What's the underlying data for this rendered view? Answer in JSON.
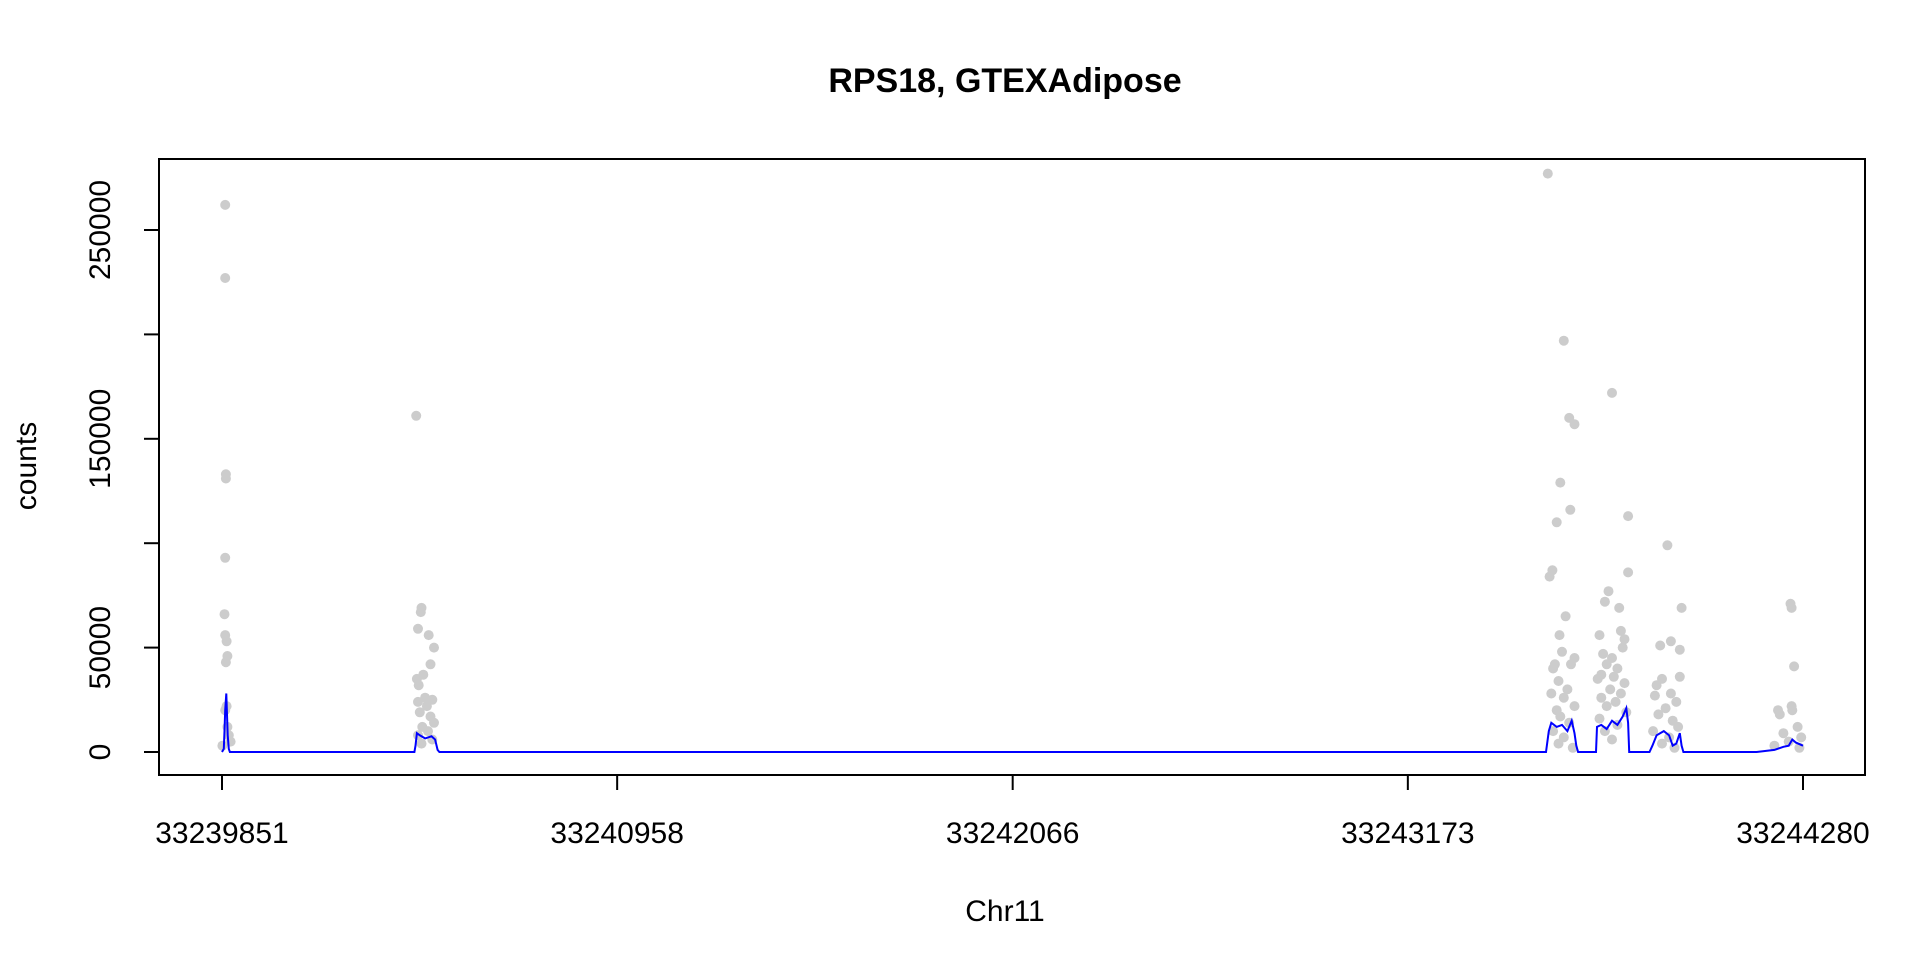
{
  "chart_data": {
    "type": "scatter",
    "title": "RPS18, GTEXAdipose",
    "xlabel": "Chr11",
    "ylabel": "counts",
    "xlim": [
      33239851,
      33244280
    ],
    "ylim": [
      0,
      275000
    ],
    "x_ticks": [
      33239851,
      33240958,
      33242066,
      33243173,
      33244280
    ],
    "y_ticks": [
      0,
      50000,
      100000,
      150000,
      200000,
      250000
    ],
    "y_tick_labels": [
      "0",
      "50000",
      "",
      "150000",
      "",
      "250000"
    ],
    "grid": false,
    "legend": "none",
    "colors": {
      "points": "#cccccc",
      "line": "#0000ff",
      "axis": "#000000"
    },
    "series": [
      {
        "kind": "points",
        "points": [
          [
            33239860,
            262000
          ],
          [
            33239860,
            227000
          ],
          [
            33239862,
            133000
          ],
          [
            33239862,
            131000
          ],
          [
            33239860,
            93000
          ],
          [
            33239858,
            66000
          ],
          [
            33239860,
            56000
          ],
          [
            33239864,
            53000
          ],
          [
            33239866,
            46000
          ],
          [
            33239862,
            43000
          ],
          [
            33239864,
            22000
          ],
          [
            33239860,
            20000
          ],
          [
            33239866,
            12000
          ],
          [
            33239870,
            8000
          ],
          [
            33239852,
            3000
          ],
          [
            33239875,
            5000
          ],
          [
            33240395,
            161000
          ],
          [
            33240410,
            69000
          ],
          [
            33240408,
            67000
          ],
          [
            33240400,
            59000
          ],
          [
            33240430,
            56000
          ],
          [
            33240445,
            50000
          ],
          [
            33240435,
            42000
          ],
          [
            33240415,
            37000
          ],
          [
            33240397,
            35000
          ],
          [
            33240402,
            32000
          ],
          [
            33240420,
            26000
          ],
          [
            33240440,
            25000
          ],
          [
            33240400,
            24000
          ],
          [
            33240425,
            22000
          ],
          [
            33240405,
            19000
          ],
          [
            33240435,
            17000
          ],
          [
            33240445,
            14000
          ],
          [
            33240412,
            12000
          ],
          [
            33240428,
            10000
          ],
          [
            33240400,
            8000
          ],
          [
            33240440,
            6000
          ],
          [
            33240410,
            4000
          ],
          [
            33243565,
            277000
          ],
          [
            33243610,
            197000
          ],
          [
            33243625,
            160000
          ],
          [
            33243640,
            157000
          ],
          [
            33243600,
            129000
          ],
          [
            33243628,
            116000
          ],
          [
            33243590,
            110000
          ],
          [
            33243578,
            87000
          ],
          [
            33243570,
            84000
          ],
          [
            33243615,
            65000
          ],
          [
            33243598,
            56000
          ],
          [
            33243640,
            45000
          ],
          [
            33243605,
            48000
          ],
          [
            33243585,
            42000
          ],
          [
            33243580,
            40000
          ],
          [
            33243630,
            42000
          ],
          [
            33243595,
            34000
          ],
          [
            33243620,
            30000
          ],
          [
            33243575,
            28000
          ],
          [
            33243610,
            26000
          ],
          [
            33243640,
            22000
          ],
          [
            33243590,
            20000
          ],
          [
            33243600,
            17000
          ],
          [
            33243625,
            14000
          ],
          [
            33243580,
            10000
          ],
          [
            33243610,
            7000
          ],
          [
            33243595,
            4000
          ],
          [
            33243635,
            2000
          ],
          [
            33243745,
            172000
          ],
          [
            33243790,
            113000
          ],
          [
            33243790,
            86000
          ],
          [
            33243735,
            77000
          ],
          [
            33243725,
            72000
          ],
          [
            33243765,
            69000
          ],
          [
            33243710,
            56000
          ],
          [
            33243770,
            58000
          ],
          [
            33243780,
            54000
          ],
          [
            33243775,
            50000
          ],
          [
            33243720,
            47000
          ],
          [
            33243745,
            45000
          ],
          [
            33243730,
            42000
          ],
          [
            33243760,
            40000
          ],
          [
            33243715,
            37000
          ],
          [
            33243750,
            36000
          ],
          [
            33243705,
            35000
          ],
          [
            33243780,
            33000
          ],
          [
            33243740,
            30000
          ],
          [
            33243770,
            28000
          ],
          [
            33243715,
            26000
          ],
          [
            33243755,
            24000
          ],
          [
            33243730,
            22000
          ],
          [
            33243785,
            19000
          ],
          [
            33243710,
            16000
          ],
          [
            33243760,
            13000
          ],
          [
            33243725,
            10000
          ],
          [
            33243745,
            6000
          ],
          [
            33243900,
            99000
          ],
          [
            33243940,
            69000
          ],
          [
            33243910,
            53000
          ],
          [
            33243880,
            51000
          ],
          [
            33243935,
            49000
          ],
          [
            33243935,
            36000
          ],
          [
            33243885,
            35000
          ],
          [
            33243870,
            32000
          ],
          [
            33243910,
            28000
          ],
          [
            33243865,
            27000
          ],
          [
            33243925,
            24000
          ],
          [
            33243895,
            21000
          ],
          [
            33243875,
            18000
          ],
          [
            33243915,
            15000
          ],
          [
            33243930,
            12000
          ],
          [
            33243860,
            10000
          ],
          [
            33243905,
            7000
          ],
          [
            33243885,
            4000
          ],
          [
            33243920,
            2000
          ],
          [
            33244245,
            71000
          ],
          [
            33244248,
            69000
          ],
          [
            33244255,
            41000
          ],
          [
            33244248,
            22000
          ],
          [
            33244250,
            20000
          ],
          [
            33244210,
            20000
          ],
          [
            33244215,
            18000
          ],
          [
            33244265,
            12000
          ],
          [
            33244225,
            9000
          ],
          [
            33244275,
            7000
          ],
          [
            33244240,
            5000
          ],
          [
            33244200,
            3000
          ],
          [
            33244270,
            2000
          ]
        ]
      },
      {
        "kind": "line",
        "points": [
          [
            33239851,
            0
          ],
          [
            33239856,
            1500
          ],
          [
            33239858,
            10000
          ],
          [
            33239860,
            20000
          ],
          [
            33239863,
            28000
          ],
          [
            33239865,
            18000
          ],
          [
            33239867,
            8000
          ],
          [
            33239870,
            1500
          ],
          [
            33239873,
            0
          ],
          [
            33240390,
            0
          ],
          [
            33240393,
            3000
          ],
          [
            33240397,
            9000
          ],
          [
            33240405,
            8000
          ],
          [
            33240420,
            6500
          ],
          [
            33240438,
            7500
          ],
          [
            33240448,
            6000
          ],
          [
            33240455,
            1000
          ],
          [
            33240460,
            0
          ],
          [
            33243560,
            0
          ],
          [
            33243568,
            10000
          ],
          [
            33243575,
            14000
          ],
          [
            33243590,
            12000
          ],
          [
            33243605,
            13000
          ],
          [
            33243620,
            10000
          ],
          [
            33243632,
            15000
          ],
          [
            33243640,
            9000
          ],
          [
            33243645,
            3000
          ],
          [
            33243650,
            0
          ],
          [
            33243700,
            0
          ],
          [
            33243703,
            12000
          ],
          [
            33243715,
            13000
          ],
          [
            33243730,
            11000
          ],
          [
            33243745,
            15000
          ],
          [
            33243760,
            13000
          ],
          [
            33243775,
            17000
          ],
          [
            33243785,
            21000
          ],
          [
            33243790,
            14000
          ],
          [
            33243793,
            0
          ],
          [
            33243850,
            0
          ],
          [
            33243858,
            3000
          ],
          [
            33243870,
            8000
          ],
          [
            33243890,
            10000
          ],
          [
            33243905,
            8000
          ],
          [
            33243915,
            3000
          ],
          [
            33243925,
            4000
          ],
          [
            33243935,
            9000
          ],
          [
            33243940,
            3000
          ],
          [
            33243945,
            0
          ],
          [
            33244150,
            0
          ],
          [
            33244200,
            1000
          ],
          [
            33244225,
            2500
          ],
          [
            33244240,
            3000
          ],
          [
            33244250,
            6000
          ],
          [
            33244260,
            4500
          ],
          [
            33244280,
            3000
          ]
        ]
      }
    ]
  }
}
